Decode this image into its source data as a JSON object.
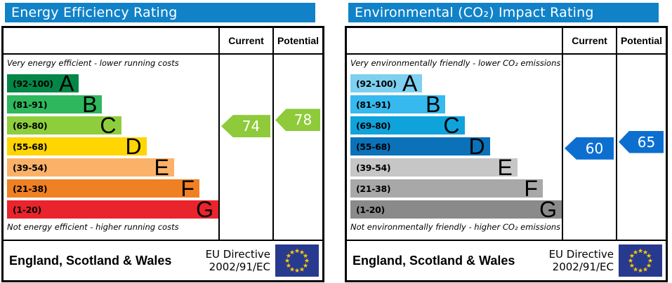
{
  "flag": {
    "background": "#283a8e",
    "star_color": "#ffcc00"
  },
  "panels": [
    {
      "title": "Energy Efficiency Rating",
      "header_color": "#1182c8",
      "columns": {
        "current": "Current",
        "potential": "Potential"
      },
      "top_caption": "Very energy efficient - lower running costs",
      "bottom_caption": "Not energy efficient - higher running costs",
      "bands": [
        {
          "letter": "A",
          "range": "(92-100)",
          "low": 92,
          "high": 100,
          "color": "#048647",
          "width_pct": 34
        },
        {
          "letter": "B",
          "range": "(81-91)",
          "low": 81,
          "high": 91,
          "color": "#2eb75c",
          "width_pct": 45
        },
        {
          "letter": "C",
          "range": "(69-80)",
          "low": 69,
          "high": 80,
          "color": "#8ece3c",
          "width_pct": 54
        },
        {
          "letter": "D",
          "range": "(55-68)",
          "low": 55,
          "high": 68,
          "color": "#ffd502",
          "width_pct": 66
        },
        {
          "letter": "E",
          "range": "(39-54)",
          "low": 39,
          "high": 54,
          "color": "#fbb268",
          "width_pct": 79
        },
        {
          "letter": "F",
          "range": "(21-38)",
          "low": 21,
          "high": 38,
          "color": "#ef8023",
          "width_pct": 91
        },
        {
          "letter": "G",
          "range": "(1-20)",
          "low": 1,
          "high": 20,
          "color": "#e9242c",
          "width_pct": 100
        }
      ],
      "current": {
        "value": 74,
        "color": "#8fca3a"
      },
      "potential": {
        "value": 78,
        "color": "#8fca3a"
      },
      "footer": {
        "region": "England, Scotland & Wales",
        "directive_line1": "EU Directive",
        "directive_line2": "2002/91/EC"
      }
    },
    {
      "title": "Environmental (CO₂) Impact Rating",
      "header_color": "#1182c8",
      "columns": {
        "current": "Current",
        "potential": "Potential"
      },
      "top_caption": "Very environmentally friendly - lower CO₂ emissions",
      "bottom_caption": "Not environmentally friendly - higher CO₂ emissions",
      "bands": [
        {
          "letter": "A",
          "range": "(92-100)",
          "low": 92,
          "high": 100,
          "color": "#7ed0f0",
          "width_pct": 34
        },
        {
          "letter": "B",
          "range": "(81-91)",
          "low": 81,
          "high": 91,
          "color": "#36b9ee",
          "width_pct": 45
        },
        {
          "letter": "C",
          "range": "(69-80)",
          "low": 69,
          "high": 80,
          "color": "#0fa3dc",
          "width_pct": 54
        },
        {
          "letter": "D",
          "range": "(55-68)",
          "low": 55,
          "high": 68,
          "color": "#0b72b9",
          "width_pct": 66
        },
        {
          "letter": "E",
          "range": "(39-54)",
          "low": 39,
          "high": 54,
          "color": "#c6c6c6",
          "width_pct": 79
        },
        {
          "letter": "F",
          "range": "(21-38)",
          "low": 21,
          "high": 38,
          "color": "#a8a8a8",
          "width_pct": 91
        },
        {
          "letter": "G",
          "range": "(1-20)",
          "low": 1,
          "high": 20,
          "color": "#8a8a8a",
          "width_pct": 100
        }
      ],
      "current": {
        "value": 60,
        "color": "#0c6fd0"
      },
      "potential": {
        "value": 65,
        "color": "#0c6fd0"
      },
      "footer": {
        "region": "England, Scotland & Wales",
        "directive_line1": "EU Directive",
        "directive_line2": "2002/91/EC"
      }
    }
  ],
  "chart_data": [
    {
      "type": "bar",
      "title": "Energy Efficiency Rating",
      "categories": [
        "A",
        "B",
        "C",
        "D",
        "E",
        "F",
        "G"
      ],
      "band_ranges": [
        "92-100",
        "81-91",
        "69-80",
        "55-68",
        "39-54",
        "21-38",
        "1-20"
      ],
      "current": 74,
      "current_band": "C",
      "potential": 78,
      "potential_band": "C",
      "top_note": "Very energy efficient - lower running costs",
      "bottom_note": "Not energy efficient - higher running costs",
      "region": "England, Scotland & Wales",
      "directive": "EU Directive 2002/91/EC"
    },
    {
      "type": "bar",
      "title": "Environmental (CO₂) Impact Rating",
      "categories": [
        "A",
        "B",
        "C",
        "D",
        "E",
        "F",
        "G"
      ],
      "band_ranges": [
        "92-100",
        "81-91",
        "69-80",
        "55-68",
        "39-54",
        "21-38",
        "1-20"
      ],
      "current": 60,
      "current_band": "D",
      "potential": 65,
      "potential_band": "D",
      "top_note": "Very environmentally friendly - lower CO₂ emissions",
      "bottom_note": "Not environmentally friendly - higher CO₂ emissions",
      "region": "England, Scotland & Wales",
      "directive": "EU Directive 2002/91/EC"
    }
  ]
}
